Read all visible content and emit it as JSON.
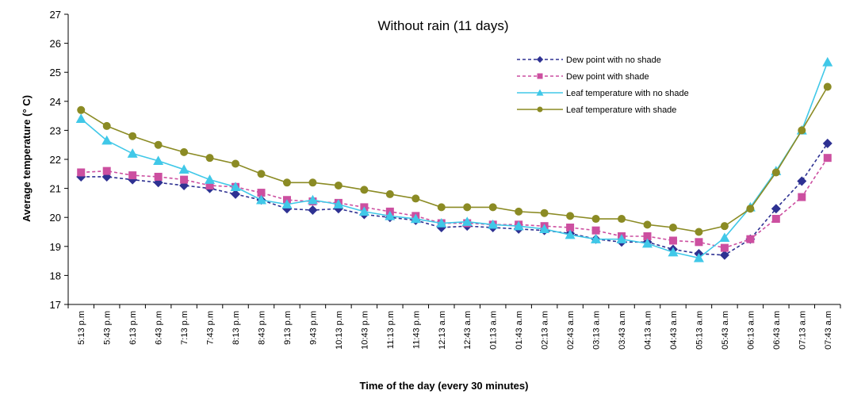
{
  "chart_data": {
    "type": "line",
    "title": "Without rain (11 days)",
    "xlabel": "Time of the day (every 30 minutes)",
    "ylabel": "Average temperature (° C)",
    "ylim": [
      17,
      27
    ],
    "yticks": [
      "17",
      "18",
      "19",
      "20",
      "21",
      "22",
      "23",
      "24",
      "25",
      "26",
      "27"
    ],
    "grid": false,
    "legend_position": "top-right",
    "categories": [
      "5:13 p.m",
      "5:43 p.m",
      "6:13 p.m",
      "6:43 p.m",
      "7:13 p.m",
      "7:43 p.m",
      "8:13 p.m",
      "8:43 p.m",
      "9:13 p.m",
      "9:43 p.m",
      "10:13 p.m",
      "10:43 p.m",
      "11:13 p.m",
      "11:43 p.m",
      "12:13 a.m",
      "12:43 a.m",
      "01:13 a.m",
      "01:43 a.m",
      "02:13 a.m",
      "02:43 a.m",
      "03:13 a.m",
      "03:43 a.m",
      "04:13 a.m",
      "04:43 a.m",
      "05:13 a.m",
      "05:43 a.m",
      "06:13 a.m",
      "06:43 a.m",
      "07:13 a.m",
      "07:43 a.m"
    ],
    "series": [
      {
        "name": "Dew point with no shade",
        "color": "#2e3192",
        "marker": "diamond",
        "dashed": true,
        "values": [
          21.4,
          21.4,
          21.3,
          21.2,
          21.1,
          21.0,
          20.8,
          20.6,
          20.3,
          20.25,
          20.3,
          20.1,
          20.0,
          19.9,
          19.65,
          19.7,
          19.65,
          19.6,
          19.55,
          19.45,
          19.25,
          19.15,
          19.15,
          18.9,
          18.75,
          18.7,
          19.25,
          20.3,
          21.25,
          22.55
        ]
      },
      {
        "name": "Dew point with shade",
        "color": "#cc4fa0",
        "marker": "square",
        "dashed": true,
        "values": [
          21.55,
          21.6,
          21.45,
          21.4,
          21.3,
          21.1,
          21.05,
          20.85,
          20.6,
          20.55,
          20.5,
          20.35,
          20.2,
          20.05,
          19.8,
          19.8,
          19.75,
          19.75,
          19.7,
          19.65,
          19.55,
          19.35,
          19.35,
          19.2,
          19.15,
          18.95,
          19.25,
          19.95,
          20.7,
          22.05
        ]
      },
      {
        "name": "Leaf temperature with no shade",
        "color": "#40c8e8",
        "marker": "triangle",
        "dashed": false,
        "values": [
          23.4,
          22.65,
          22.2,
          21.95,
          21.65,
          21.3,
          21.05,
          20.6,
          20.45,
          20.6,
          20.45,
          20.2,
          20.05,
          19.95,
          19.8,
          19.85,
          19.75,
          19.7,
          19.6,
          19.4,
          19.25,
          19.25,
          19.1,
          18.8,
          18.6,
          19.3,
          20.35,
          21.6,
          23.0,
          25.35
        ]
      },
      {
        "name": "Leaf temperature with shade",
        "color": "#8b8b24",
        "marker": "circle",
        "dashed": false,
        "values": [
          23.7,
          23.15,
          22.8,
          22.5,
          22.25,
          22.05,
          21.85,
          21.5,
          21.2,
          21.2,
          21.1,
          20.95,
          20.8,
          20.65,
          20.35,
          20.35,
          20.35,
          20.2,
          20.15,
          20.05,
          19.95,
          19.95,
          19.75,
          19.65,
          19.5,
          19.7,
          20.3,
          21.55,
          23.0,
          24.5
        ]
      }
    ]
  }
}
